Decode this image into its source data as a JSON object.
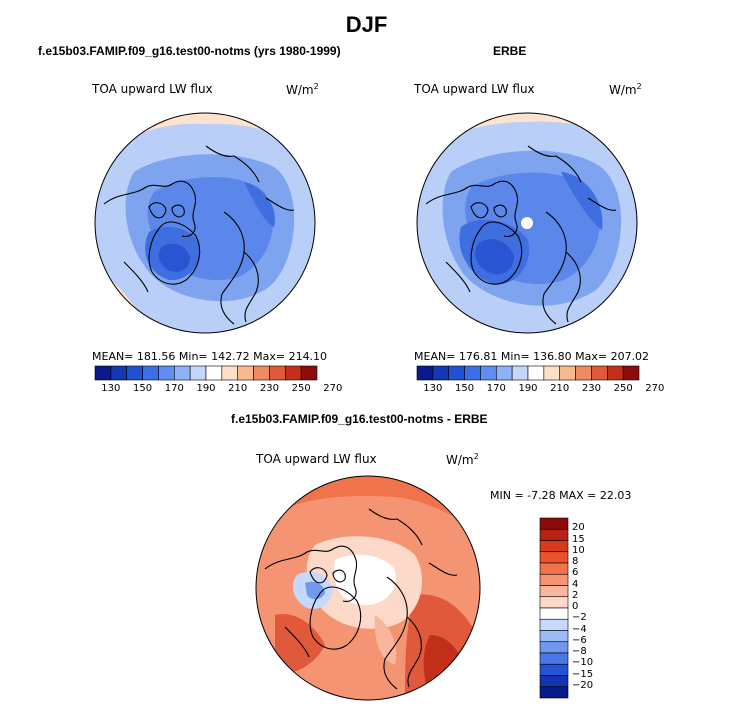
{
  "figure": {
    "title": "DJF"
  },
  "panels": [
    {
      "subtitle": "f.e15b03.FAMIP.f09_g16.test00-notms (yrs 1980-1999)",
      "field_label": "TOA upward LW flux",
      "units_label": "W/m",
      "units_exp": "2",
      "stats": "MEAN= 181.56  Min= 142.72  Max= 214.10"
    },
    {
      "subtitle": "ERBE",
      "field_label": "TOA upward LW flux",
      "units_label": "W/m",
      "units_exp": "2",
      "stats": "MEAN= 176.81  Min= 136.80  Max= 207.02"
    },
    {
      "subtitle": "f.e15b03.FAMIP.f09_g16.test00-notms - ERBE",
      "field_label": "TOA upward LW flux",
      "units_label": "W/m",
      "units_exp": "2",
      "stats": "MIN =  -7.28 MAX =  22.03"
    }
  ],
  "colorbar_abs": {
    "ticks": [
      "130",
      "150",
      "170",
      "190",
      "210",
      "230",
      "250",
      "270"
    ],
    "colors": [
      "#0a1a8c",
      "#1238b4",
      "#1f52d2",
      "#3b6fe8",
      "#5f8ef2",
      "#8fb2f7",
      "#c4d7fb",
      "#ffffff",
      "#fde0c8",
      "#f9b890",
      "#f08a62",
      "#e0593a",
      "#c2301c",
      "#8f0c0c"
    ]
  },
  "colorbar_diff": {
    "ticks": [
      "20",
      "15",
      "10",
      "8",
      "6",
      "4",
      "2",
      "0",
      "−2",
      "−4",
      "−6",
      "−8",
      "−10",
      "−15",
      "−20"
    ],
    "colors": [
      "#8e0b0b",
      "#b82212",
      "#d8391c",
      "#e9532c",
      "#f0734c",
      "#f49472",
      "#f8b79c",
      "#fcd9c8",
      "#ffffff",
      "#c6d8fb",
      "#9cbaf6",
      "#7098ee",
      "#4a78e6",
      "#2553d6",
      "#1234b2",
      "#091a8a"
    ]
  },
  "map_colors": {
    "pale_warm": "#fde3cf",
    "pale_cool": "#dce7fb",
    "light_blue": "#b9cff8",
    "mid_blue": "#7ea4f0",
    "blue": "#5b87ea",
    "deep_blue": "#3f6ee0",
    "darker_blue": "#2a55d2",
    "diff_red1": "#f8b79c",
    "diff_red2": "#f49472",
    "diff_red3": "#f0734c",
    "diff_red4": "#e0593a",
    "diff_red5": "#c2301c"
  }
}
